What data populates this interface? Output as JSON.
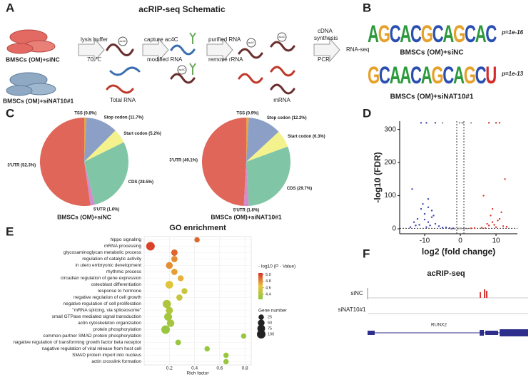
{
  "panel_letters": [
    "A",
    "B",
    "C",
    "D",
    "E",
    "F"
  ],
  "schematic": {
    "title": "acRIP-seq Schematic",
    "groups": [
      "BMSCs (OM)+siNC",
      "BMSCs (OM)+siNAT10#1"
    ],
    "steps": [
      "lysis buffer",
      "70 ℃",
      "Total RNA",
      "capture ac4C",
      "modified RNA",
      "purified RNA",
      "remove rRNA",
      "mRNA",
      "cDNA",
      "synthesis",
      "PCR",
      "RNA-seq"
    ],
    "tag": "ac4C"
  },
  "motifs": [
    {
      "sequence": "AGCACGCAGCAC",
      "p": "p=1e-16",
      "label": "BMSCs (OM)+siNC"
    },
    {
      "sequence": "GCAACAGCAGCU",
      "p": "p=1e-13",
      "label": "BMSCs (OM)+siNAT10#1"
    }
  ],
  "chart_data": [
    {
      "type": "pie",
      "title": "BMSCs (OM)+siNC",
      "values": [
        0.8,
        11.7,
        5.2,
        28.5,
        1.6,
        52.3
      ],
      "value_labels": [
        "TSS (0.8%)",
        "Stop codon (11.7%)",
        "Start codon (5.2%)",
        "CDS (28.5%)",
        "5'UTR (1.6%)",
        "3'UTR (52.3%)"
      ],
      "colors": [
        "#e8a44a",
        "#8c9fc6",
        "#f4f28c",
        "#80c6a6",
        "#d68bc8",
        "#df6658"
      ]
    },
    {
      "type": "pie",
      "title": "BMSCs (OM)+siNAT10#1",
      "values": [
        0.9,
        12.2,
        6.3,
        29.7,
        1.8,
        49.1
      ],
      "value_labels": [
        "TSS (0.9%)",
        "Stop codon (12.2%)",
        "Start codon (6.3%)",
        "CDS (29.7%)",
        "5'UTR (1.8%)",
        "3'UTR (49.1%)"
      ],
      "colors": [
        "#e8a44a",
        "#8c9fc6",
        "#f4f28c",
        "#80c6a6",
        "#d68bc8",
        "#df6658"
      ]
    },
    {
      "type": "scatter",
      "x_label": "log2 (fold change)",
      "y_label": "-log10 (FDR)",
      "xlim": [
        -17,
        16
      ],
      "ylim": [
        -15,
        325
      ],
      "xticks": [
        -10,
        0,
        10
      ],
      "yticks": [
        0,
        100,
        200,
        300
      ],
      "reference_x": [
        -1,
        1
      ],
      "reference_y": [
        1.3
      ],
      "series": [
        {
          "color": "#3a44b2",
          "x": [
            -9,
            -10,
            -8.5,
            -11,
            -12,
            -9.5,
            -7,
            -8,
            -10.5,
            -13,
            -6,
            -9,
            -11.5,
            -7.5,
            -10,
            -8,
            -12.5,
            -14,
            -5,
            -9,
            -3,
            -2,
            -4,
            -11,
            -9.5,
            -7,
            -13.5
          ],
          "values": [
            20,
            45,
            10,
            60,
            30,
            5,
            15,
            35,
            75,
            20,
            8,
            90,
            12,
            40,
            28,
            55,
            10,
            5,
            3,
            65,
            2,
            1.5,
            4,
            320,
            320,
            320,
            120
          ]
        },
        {
          "color": "#e0352b",
          "x": [
            8,
            9,
            10,
            11,
            7.5,
            12,
            8.5,
            9.5,
            10.5,
            13,
            6,
            11.5,
            7,
            9,
            4,
            3,
            8,
            10,
            11,
            12.5,
            6.5
          ],
          "values": [
            10,
            20,
            5,
            30,
            15,
            8,
            40,
            12,
            25,
            6,
            3,
            50,
            2,
            60,
            2,
            1.5,
            320,
            320,
            320,
            150,
            100
          ]
        },
        {
          "color": "#9a9a9a",
          "x": [
            -0.5,
            0.3,
            -1.5,
            1.2,
            0,
            -2.5,
            2,
            0.8,
            -0.2,
            0.5,
            -5,
            3
          ],
          "values": [
            0.5,
            1,
            0.2,
            0.8,
            2,
            -1,
            0.3,
            320,
            320,
            320,
            320,
            320
          ]
        }
      ]
    },
    {
      "type": "bubble",
      "title": "GO enrichment",
      "categories": [
        "hippo signaling",
        "mRNA processing",
        "glycosaminoglycan metabolic process",
        "regulation of catalytic activity",
        "in utero embryonic development",
        "rhythmic process",
        "circadian regulation of gene expression",
        "osteoblast differentiation",
        "response to hormone",
        "negative regulation of cell growth",
        "negative regulation of cell proliferation",
        "\"mRNA splicing, via spliceosome\"",
        "small GTPase mediated signal transduction",
        "actin cytoskeleton organization",
        "protein phosphorylation",
        "common-partner SMAD protein phosphorylation",
        "nagative regulation of transforming growth factor beta receptor",
        "nagative regulation of viral release from host cell",
        "SMAD protein import into nucleus",
        "actin crosslink formation"
      ],
      "values": [
        0.42,
        0.05,
        0.24,
        0.24,
        0.2,
        0.24,
        0.29,
        0.2,
        0.32,
        0.28,
        0.18,
        0.2,
        0.19,
        0.21,
        0.17,
        0.79,
        0.27,
        0.5,
        0.65,
        0.65
      ],
      "sizes": [
        25,
        100,
        45,
        40,
        55,
        40,
        35,
        75,
        35,
        40,
        90,
        60,
        80,
        70,
        100,
        25,
        30,
        25,
        25,
        25
      ],
      "color_values": [
        4.9,
        5.0,
        4.9,
        4.8,
        4.8,
        4.75,
        4.7,
        4.6,
        4.5,
        4.5,
        4.4,
        4.4,
        4.35,
        4.35,
        4.3,
        4.3,
        4.3,
        4.3,
        4.3,
        4.3
      ],
      "xlim": [
        0,
        0.85
      ],
      "xticks": [
        0.2,
        0.4,
        0.6,
        0.8
      ],
      "x_label": "Rich factor",
      "color_legend_title": "- log10 (P - Value)",
      "color_lim": [
        4.25,
        5.05
      ],
      "color_ticks": [
        {
          "value": 5,
          "label": "5.0"
        },
        4.8,
        4.6,
        4.4
      ],
      "size_legend_title": "Gene number",
      "size_ticks": [
        25,
        50,
        75,
        100
      ],
      "grid": true
    }
  ],
  "track": {
    "title": "acRIP-seq",
    "samples": [
      "siNC",
      "siNAT10#1"
    ],
    "gene": "RUNX2"
  }
}
